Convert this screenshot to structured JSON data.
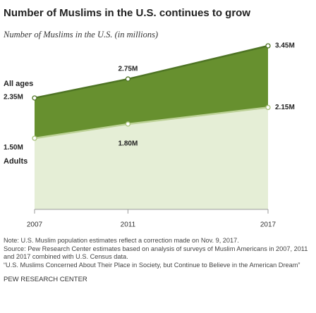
{
  "chart_data": {
    "type": "area",
    "title": "Number of Muslims in the U.S. continues to grow",
    "subtitle": "Number of Muslims in the U.S. (in millions)",
    "x": [
      2007,
      2011,
      2017
    ],
    "xlim": [
      2007,
      2017
    ],
    "xticks": [
      2007,
      2011,
      2017
    ],
    "ylim": [
      0,
      4
    ],
    "series": [
      {
        "name": "All ages",
        "color": "#67902f",
        "values": [
          2.35,
          2.75,
          3.45
        ],
        "value_labels": [
          "2.35M",
          "2.75M",
          "3.45M"
        ]
      },
      {
        "name": "Adults",
        "color": "#e5eed6",
        "values": [
          1.5,
          1.8,
          2.15
        ],
        "value_labels": [
          "1.50M",
          "1.80M",
          "2.15M"
        ]
      }
    ],
    "note": "Note: U.S. Muslim population estimates reflect a correction made on Nov. 9, 2017.",
    "source": "Source: Pew Research Center estimates based on analysis of surveys of Muslim Americans in 2007, 2011 and 2017 combined with U.S. Census data.",
    "report": "“U.S. Muslims Concerned About Their Place in Society, but Continue to Believe in the American Dream”",
    "organization": "PEW RESEARCH CENTER"
  }
}
